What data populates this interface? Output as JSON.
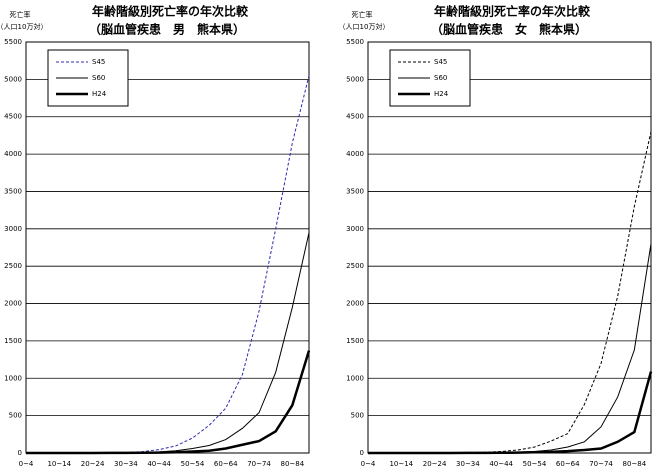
{
  "chart_data": [
    {
      "type": "line",
      "title": "年齢階級別死亡率の年次比較",
      "subtitle": "（脳血管疾患　男　熊本県）",
      "y_label": "死亡率",
      "y_unit": "（人口10万対）",
      "categories": [
        "0~4",
        null,
        "10~14",
        null,
        "20~24",
        null,
        "30~34",
        null,
        "40~44",
        null,
        "50~54",
        null,
        "60~64",
        null,
        "70~74",
        null,
        "80~84",
        null
      ],
      "ylim": [
        0,
        5500
      ],
      "yticks": [
        0,
        500,
        1000,
        1500,
        2000,
        2500,
        3000,
        3500,
        4000,
        4500,
        5000,
        5500
      ],
      "grid": true,
      "series": [
        {
          "name": "S45",
          "color": "#2b2bb0",
          "dash": true,
          "width": 1,
          "values": [
            3,
            1,
            1,
            2,
            3,
            4,
            8,
            18,
            45,
            95,
            200,
            370,
            600,
            1050,
            1900,
            3000,
            4150,
            5050
          ]
        },
        {
          "name": "S60",
          "color": "#000000",
          "dash": false,
          "width": 1,
          "values": [
            1,
            0,
            0,
            1,
            1,
            2,
            4,
            8,
            15,
            30,
            60,
            100,
            180,
            330,
            540,
            1080,
            1950,
            2950
          ]
        },
        {
          "name": "H24",
          "color": "#000000",
          "dash": false,
          "width": 2.5,
          "values": [
            0,
            0,
            0,
            0,
            0,
            1,
            2,
            3,
            5,
            10,
            20,
            30,
            60,
            110,
            160,
            290,
            640,
            1370
          ]
        }
      ]
    },
    {
      "type": "line",
      "title": "年齢階級別死亡率の年次比較",
      "subtitle": "（脳血管疾患　女　熊本県）",
      "y_label": "死亡率",
      "y_unit": "（人口10万対）",
      "categories": [
        "0~4",
        null,
        "10~14",
        null,
        "20~24",
        null,
        "30~34",
        null,
        "40~44",
        null,
        "50~54",
        null,
        "60~64",
        null,
        "70~74",
        null,
        "80~84",
        null
      ],
      "ylim": [
        0,
        5500
      ],
      "yticks": [
        0,
        500,
        1000,
        1500,
        2000,
        2500,
        3000,
        3500,
        4000,
        4500,
        5000,
        5500
      ],
      "grid": true,
      "series": [
        {
          "name": "S45",
          "color": "#000000",
          "dash": true,
          "width": 1,
          "values": [
            2,
            1,
            1,
            1,
            2,
            3,
            5,
            10,
            20,
            40,
            80,
            160,
            260,
            650,
            1200,
            2100,
            3300,
            4300
          ]
        },
        {
          "name": "S60",
          "color": "#000000",
          "dash": false,
          "width": 1,
          "values": [
            1,
            0,
            0,
            0,
            1,
            1,
            2,
            5,
            8,
            12,
            20,
            40,
            80,
            150,
            350,
            750,
            1380,
            2800
          ]
        },
        {
          "name": "H24",
          "color": "#000000",
          "dash": false,
          "width": 2.5,
          "values": [
            0,
            0,
            0,
            0,
            0,
            0,
            1,
            2,
            3,
            5,
            10,
            15,
            25,
            40,
            60,
            150,
            280,
            1090
          ]
        }
      ]
    }
  ]
}
